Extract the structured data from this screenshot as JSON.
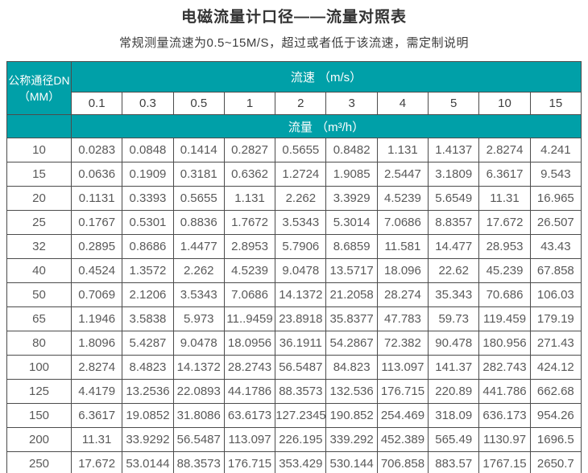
{
  "title": "电磁流量计口径——流量对照表",
  "subtitle": "常规测量流速为0.5~15M/S，超过或者低于该流速，需定制说明",
  "colors": {
    "header_teal": "#00A0A8",
    "table_border": "#4c4c4c",
    "header_text": "#ffffff",
    "body_text": "#595959",
    "title_text": "#333333"
  },
  "chart_data": {
    "type": "table",
    "title": "电磁流量计口径——流量对照表",
    "subtitle": "常规测量流速为0.5~15M/S，超过或者低于该流速，需定制说明",
    "corner_header": {
      "line1": "公称通径DN",
      "line2": "（MM）"
    },
    "speed_group_header": "流速 （m/s）",
    "flow_group_header": "流量 （m³/h）",
    "speed_columns": [
      "0.1",
      "0.3",
      "0.5",
      "1",
      "2",
      "3",
      "4",
      "5",
      "10",
      "15"
    ],
    "rows": [
      {
        "dn": "10",
        "values": [
          "0.0283",
          "0.0848",
          "0.1414",
          "0.2827",
          "0.5655",
          "0.8482",
          "1.131",
          "1.4137",
          "2.8274",
          "4.241"
        ]
      },
      {
        "dn": "15",
        "values": [
          "0.0636",
          "0.1909",
          "0.3181",
          "0.6362",
          "1.2724",
          "1.9085",
          "2.5447",
          "3.1809",
          "6.3617",
          "9.543"
        ]
      },
      {
        "dn": "20",
        "values": [
          "0.1131",
          "0.3393",
          "0.5655",
          "1.131",
          "2.262",
          "3.3929",
          "4.5239",
          "5.6549",
          "11.31",
          "16.965"
        ]
      },
      {
        "dn": "25",
        "values": [
          "0.1767",
          "0.5301",
          "0.8836",
          "1.7672",
          "3.5343",
          "5.3014",
          "7.0686",
          "8.8357",
          "17.672",
          "26.507"
        ]
      },
      {
        "dn": "32",
        "values": [
          "0.2895",
          "0.8686",
          "1.4477",
          "2.8953",
          "5.7906",
          "8.6859",
          "11.581",
          "14.477",
          "28.953",
          "43.43"
        ]
      },
      {
        "dn": "40",
        "values": [
          "0.4524",
          "1.3572",
          "2.262",
          "4.5239",
          "9.0478",
          "13.5717",
          "18.096",
          "22.62",
          "45.239",
          "67.858"
        ]
      },
      {
        "dn": "50",
        "values": [
          "0.7069",
          "2.1206",
          "3.5343",
          "7.0686",
          "14.1372",
          "21.2058",
          "28.274",
          "35.343",
          "70.686",
          "106.03"
        ]
      },
      {
        "dn": "65",
        "values": [
          "1.1946",
          "3.5838",
          "5.973",
          "11..9459",
          "23.8918",
          "35.8377",
          "47.783",
          "59.73",
          "119.459",
          "179.19"
        ]
      },
      {
        "dn": "80",
        "values": [
          "1.8096",
          "5.4287",
          "9.0478",
          "18.0956",
          "36.1911",
          "54.2867",
          "72.382",
          "90.478",
          "180.956",
          "271.43"
        ]
      },
      {
        "dn": "100",
        "values": [
          "2.8274",
          "8.4823",
          "14.1372",
          "28.2743",
          "56.5487",
          "84.823",
          "113.097",
          "141.37",
          "282.743",
          "424.12"
        ]
      },
      {
        "dn": "125",
        "values": [
          "4.4179",
          "13.2536",
          "22.0893",
          "44.1786",
          "88.3573",
          "132.536",
          "176.715",
          "220.89",
          "441.786",
          "662.68"
        ]
      },
      {
        "dn": "150",
        "values": [
          "6.3617",
          "19.0852",
          "31.8086",
          "63.6173",
          "127.2345",
          "190.852",
          "254.469",
          "318.09",
          "636.173",
          "954.26"
        ]
      },
      {
        "dn": "200",
        "values": [
          "11.31",
          "33.9292",
          "56.5487",
          "113.097",
          "226.195",
          "339.292",
          "452.389",
          "565.49",
          "1130.97",
          "1696.5"
        ]
      },
      {
        "dn": "250",
        "values": [
          "17.672",
          "53.0144",
          "88.3573",
          "176.715",
          "353.429",
          "530.144",
          "706.858",
          "883.57",
          "1767.15",
          "2650.7"
        ]
      }
    ]
  }
}
